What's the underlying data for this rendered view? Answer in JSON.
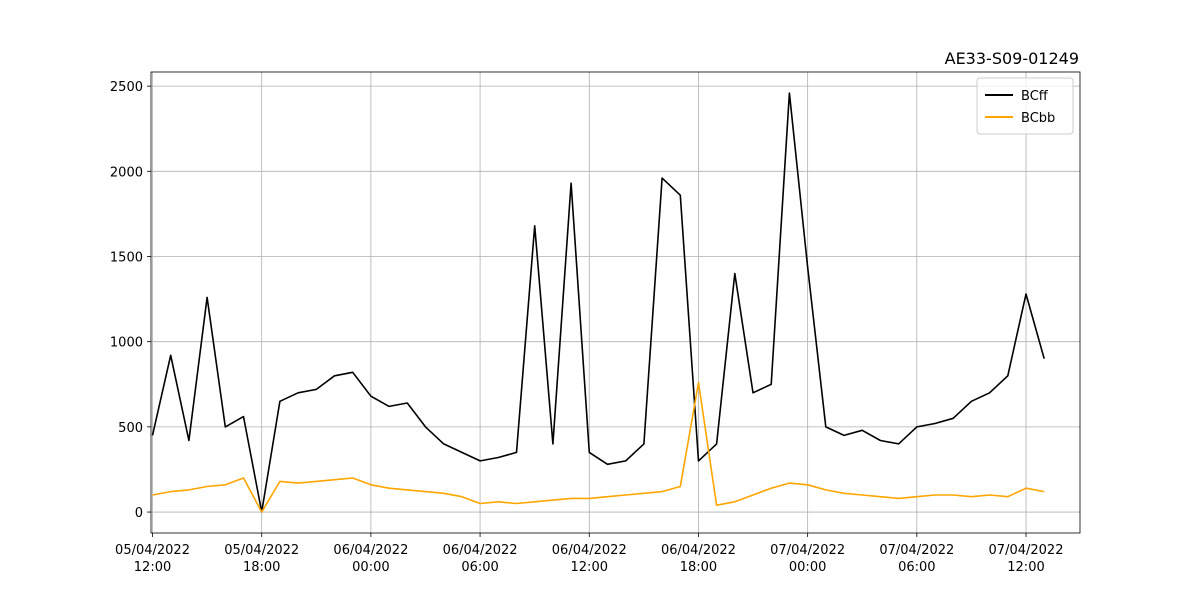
{
  "chart_data": {
    "type": "line",
    "title": "AE33-S09-01249",
    "x": [
      "05/04/2022 12:00",
      "05/04/2022 13:00",
      "05/04/2022 14:00",
      "05/04/2022 15:00",
      "05/04/2022 16:00",
      "05/04/2022 17:00",
      "05/04/2022 18:00",
      "05/04/2022 19:00",
      "05/04/2022 20:00",
      "05/04/2022 21:00",
      "05/04/2022 22:00",
      "05/04/2022 23:00",
      "06/04/2022 00:00",
      "06/04/2022 01:00",
      "06/04/2022 02:00",
      "06/04/2022 03:00",
      "06/04/2022 04:00",
      "06/04/2022 05:00",
      "06/04/2022 06:00",
      "06/04/2022 07:00",
      "06/04/2022 08:00",
      "06/04/2022 09:00",
      "06/04/2022 10:00",
      "06/04/2022 11:00",
      "06/04/2022 12:00",
      "06/04/2022 13:00",
      "06/04/2022 14:00",
      "06/04/2022 15:00",
      "06/04/2022 16:00",
      "06/04/2022 17:00",
      "06/04/2022 18:00",
      "06/04/2022 19:00",
      "06/04/2022 20:00",
      "06/04/2022 21:00",
      "06/04/2022 22:00",
      "06/04/2022 23:00",
      "07/04/2022 00:00",
      "07/04/2022 01:00",
      "07/04/2022 02:00",
      "07/04/2022 03:00",
      "07/04/2022 04:00",
      "07/04/2022 05:00",
      "07/04/2022 06:00",
      "07/04/2022 07:00",
      "07/04/2022 08:00",
      "07/04/2022 09:00",
      "07/04/2022 10:00",
      "07/04/2022 11:00",
      "07/04/2022 12:00",
      "07/04/2022 13:00"
    ],
    "series": [
      {
        "name": "BCff",
        "color": "#000000",
        "values": [
          450,
          920,
          420,
          1260,
          500,
          560,
          0,
          650,
          700,
          720,
          800,
          820,
          680,
          620,
          640,
          500,
          400,
          350,
          300,
          320,
          350,
          1680,
          400,
          1930,
          350,
          280,
          300,
          400,
          1960,
          1860,
          300,
          400,
          1400,
          700,
          750,
          2460,
          1440,
          500,
          450,
          480,
          420,
          400,
          500,
          520,
          550,
          650,
          700,
          800,
          1280,
          900
        ]
      },
      {
        "name": "BCbb",
        "color": "#ffa500",
        "values": [
          100,
          120,
          130,
          150,
          160,
          200,
          0,
          180,
          170,
          180,
          190,
          200,
          160,
          140,
          130,
          120,
          110,
          90,
          50,
          60,
          50,
          60,
          70,
          80,
          80,
          90,
          100,
          110,
          120,
          150,
          760,
          40,
          60,
          100,
          140,
          170,
          160,
          130,
          110,
          100,
          90,
          80,
          90,
          100,
          100,
          90,
          100,
          90,
          140,
          120
        ]
      }
    ],
    "xlim": [
      "05/04/2022 11:55",
      "07/04/2022 14:58"
    ],
    "xticks": [
      "05/04/2022 12:00",
      "05/04/2022 18:00",
      "06/04/2022 00:00",
      "06/04/2022 06:00",
      "06/04/2022 12:00",
      "06/04/2022 18:00",
      "07/04/2022 00:00",
      "07/04/2022 06:00",
      "07/04/2022 12:00"
    ],
    "ylim": [
      -123,
      2583
    ],
    "yticks": [
      0,
      500,
      1000,
      1500,
      2000,
      2500
    ],
    "grid": true,
    "legend": "upper right"
  }
}
